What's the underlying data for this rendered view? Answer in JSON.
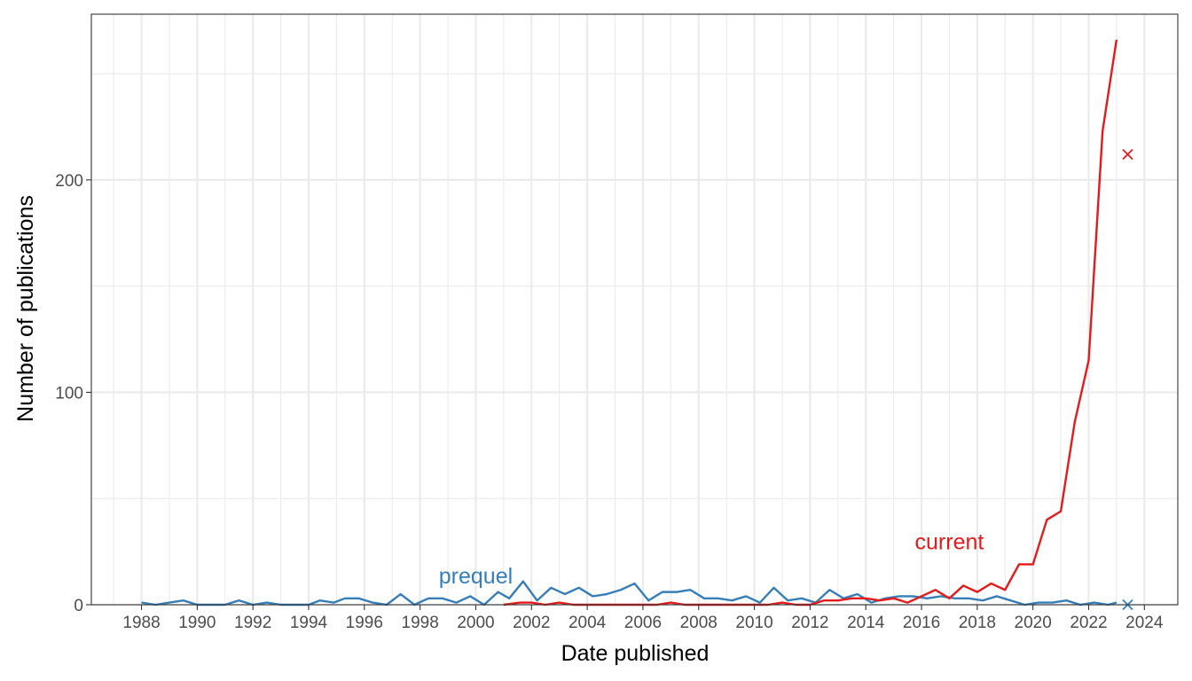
{
  "chart_data": {
    "type": "line",
    "xlabel": "Date published",
    "ylabel": "Number of publications",
    "xlim": [
      1986.2,
      2025.2
    ],
    "ylim": [
      0,
      278
    ],
    "x_ticks": [
      1988,
      1990,
      1992,
      1994,
      1996,
      1998,
      2000,
      2002,
      2004,
      2006,
      2008,
      2010,
      2012,
      2014,
      2016,
      2018,
      2020,
      2022,
      2024
    ],
    "y_ticks": [
      0,
      100,
      200
    ],
    "grid": true,
    "legend": "none",
    "series": [
      {
        "name": "prequel",
        "color": "#377eb8",
        "label_position": [
          2000,
          10
        ],
        "points": [
          [
            1988.0,
            1
          ],
          [
            1988.5,
            0
          ],
          [
            1989.0,
            1
          ],
          [
            1989.5,
            2
          ],
          [
            1990.0,
            0
          ],
          [
            1990.5,
            0
          ],
          [
            1991.0,
            0
          ],
          [
            1991.5,
            2
          ],
          [
            1992.0,
            0
          ],
          [
            1992.5,
            1
          ],
          [
            1993.0,
            0
          ],
          [
            1993.5,
            0
          ],
          [
            1994.0,
            0
          ],
          [
            1994.4,
            2
          ],
          [
            1994.9,
            1
          ],
          [
            1995.3,
            3
          ],
          [
            1995.8,
            3
          ],
          [
            1996.3,
            1
          ],
          [
            1996.8,
            0
          ],
          [
            1997.3,
            5
          ],
          [
            1997.8,
            0
          ],
          [
            1998.3,
            3
          ],
          [
            1998.8,
            3
          ],
          [
            1999.3,
            1
          ],
          [
            1999.8,
            4
          ],
          [
            2000.3,
            0
          ],
          [
            2000.8,
            6
          ],
          [
            2001.2,
            3
          ],
          [
            2001.7,
            11
          ],
          [
            2002.2,
            2
          ],
          [
            2002.7,
            8
          ],
          [
            2003.2,
            5
          ],
          [
            2003.7,
            8
          ],
          [
            2004.2,
            4
          ],
          [
            2004.7,
            5
          ],
          [
            2005.2,
            7
          ],
          [
            2005.7,
            10
          ],
          [
            2006.2,
            2
          ],
          [
            2006.7,
            6
          ],
          [
            2007.2,
            6
          ],
          [
            2007.7,
            7
          ],
          [
            2008.2,
            3
          ],
          [
            2008.7,
            3
          ],
          [
            2009.2,
            2
          ],
          [
            2009.7,
            4
          ],
          [
            2010.2,
            1
          ],
          [
            2010.7,
            8
          ],
          [
            2011.2,
            2
          ],
          [
            2011.7,
            3
          ],
          [
            2012.2,
            1
          ],
          [
            2012.7,
            7
          ],
          [
            2013.2,
            3
          ],
          [
            2013.7,
            5
          ],
          [
            2014.2,
            1
          ],
          [
            2014.7,
            3
          ],
          [
            2015.2,
            4
          ],
          [
            2015.7,
            4
          ],
          [
            2016.2,
            3
          ],
          [
            2016.7,
            4
          ],
          [
            2017.2,
            3
          ],
          [
            2017.7,
            3
          ],
          [
            2018.2,
            2
          ],
          [
            2018.7,
            4
          ],
          [
            2019.2,
            2
          ],
          [
            2019.7,
            0
          ],
          [
            2020.2,
            1
          ],
          [
            2020.7,
            1
          ],
          [
            2021.2,
            2
          ],
          [
            2021.7,
            0
          ],
          [
            2022.2,
            1
          ],
          [
            2022.7,
            0
          ],
          [
            2023.0,
            1
          ]
        ],
        "marker": [
          2023.4,
          0
        ]
      },
      {
        "name": "current",
        "color": "#e41a1c",
        "label_position": [
          2017,
          26
        ],
        "points": [
          [
            2001.0,
            0
          ],
          [
            2001.6,
            1
          ],
          [
            2002.0,
            1
          ],
          [
            2002.5,
            0
          ],
          [
            2003.0,
            1
          ],
          [
            2003.5,
            0
          ],
          [
            2004.0,
            0
          ],
          [
            2004.5,
            0
          ],
          [
            2005.0,
            0
          ],
          [
            2005.5,
            0
          ],
          [
            2006.0,
            0
          ],
          [
            2006.5,
            0
          ],
          [
            2007.0,
            1
          ],
          [
            2007.5,
            0
          ],
          [
            2008.0,
            0
          ],
          [
            2008.5,
            0
          ],
          [
            2009.0,
            0
          ],
          [
            2009.5,
            0
          ],
          [
            2010.0,
            0
          ],
          [
            2010.5,
            0
          ],
          [
            2011.0,
            1
          ],
          [
            2011.5,
            0
          ],
          [
            2012.0,
            0
          ],
          [
            2012.5,
            2
          ],
          [
            2013.0,
            2
          ],
          [
            2013.5,
            3
          ],
          [
            2014.0,
            3
          ],
          [
            2014.5,
            2
          ],
          [
            2015.0,
            3
          ],
          [
            2015.5,
            1
          ],
          [
            2016.0,
            4
          ],
          [
            2016.5,
            7
          ],
          [
            2017.0,
            3
          ],
          [
            2017.5,
            9
          ],
          [
            2018.0,
            6
          ],
          [
            2018.5,
            10
          ],
          [
            2019.0,
            7
          ],
          [
            2019.5,
            19
          ],
          [
            2020.0,
            19
          ],
          [
            2020.5,
            40
          ],
          [
            2021.0,
            44
          ],
          [
            2021.5,
            86
          ],
          [
            2022.0,
            115
          ],
          [
            2022.5,
            223
          ],
          [
            2023.0,
            266
          ]
        ],
        "marker": [
          2023.4,
          212
        ]
      }
    ]
  }
}
